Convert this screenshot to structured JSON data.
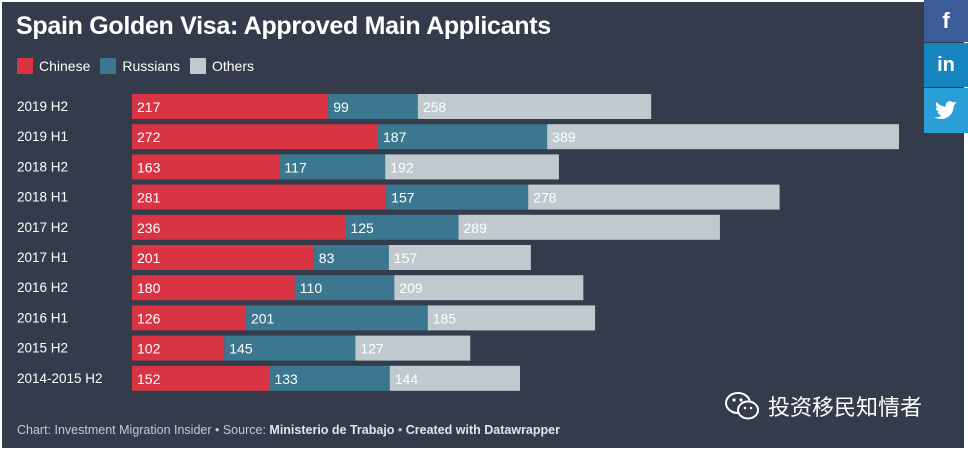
{
  "title": "Spain Golden Visa: Approved Main Applicants",
  "legend": [
    {
      "label": "Chinese",
      "color": "#d93444"
    },
    {
      "label": "Russians",
      "color": "#3b7890"
    },
    {
      "label": "Others",
      "color": "#c0cace"
    }
  ],
  "social": {
    "facebook_icon": "f",
    "linkedin_icon": "in",
    "twitter_icon": "twitter-bird"
  },
  "chart_data": {
    "type": "bar",
    "orientation": "horizontal",
    "stacked": true,
    "categories": [
      "2019 H2",
      "2019 H1",
      "2018 H2",
      "2018 H1",
      "2017 H2",
      "2017 H1",
      "2016 H2",
      "2016 H1",
      "2015 H2",
      "2014-2015 H2"
    ],
    "series": [
      {
        "name": "Chinese",
        "color": "#d93444",
        "values": [
          217,
          272,
          163,
          281,
          236,
          201,
          180,
          126,
          102,
          152
        ]
      },
      {
        "name": "Russians",
        "color": "#3b7890",
        "values": [
          99,
          187,
          117,
          157,
          125,
          83,
          110,
          201,
          145,
          133
        ]
      },
      {
        "name": "Others",
        "color": "#c0cace",
        "values": [
          258,
          389,
          192,
          278,
          289,
          157,
          209,
          185,
          127,
          144
        ]
      }
    ],
    "xlim": [
      0,
      848
    ],
    "legend_position": "top-left",
    "grid": false
  },
  "footer": {
    "prefix": "Chart: Investment Migration Insider • Source: ",
    "source": "Ministerio de Trabajo",
    "separator": " • ",
    "credit": "Created with Datawrapper"
  },
  "watermark": "投资移民知情者"
}
